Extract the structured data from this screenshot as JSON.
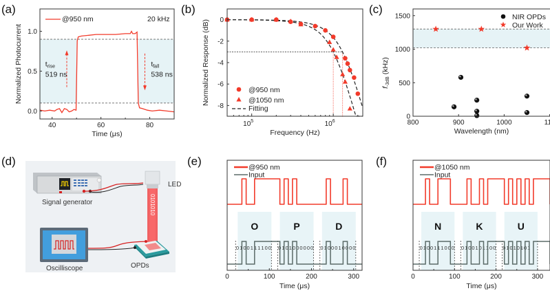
{
  "panels": {
    "a": "(a)",
    "b": "(b)",
    "c": "(c)",
    "d": "(d)",
    "e": "(e)",
    "f": "(f)"
  },
  "colors": {
    "red": "#f23a2a",
    "gray": "#5b6b68",
    "shade": "#e6f3f6",
    "black": "#222222"
  },
  "chart_data": [
    {
      "id": "a",
      "type": "line",
      "title": "",
      "xlabel": "Time (μs)",
      "ylabel": "Normalized Photocurrent",
      "xlim": [
        35,
        90
      ],
      "ylim": [
        -0.1,
        1.28
      ],
      "xticks": [
        40,
        60,
        80
      ],
      "xtick_labels": [
        "40",
        "60",
        "80"
      ],
      "yticks": [
        0.0,
        0.5,
        1.0
      ],
      "ytick_labels": [
        "0.0",
        "0.5",
        "1.0"
      ],
      "legend": [
        {
          "name": "@950 nm",
          "color": "#f23a2a"
        }
      ],
      "annotation_freq": "20 kHz",
      "thresholds": [
        0.1,
        0.9
      ],
      "rise": {
        "label": "t",
        "sub": "rise",
        "value": "519 ns"
      },
      "fall": {
        "label": "t",
        "sub": "fall",
        "value": "538 ns"
      },
      "series": [
        {
          "name": "@950 nm",
          "x": [
            35,
            37,
            39,
            41,
            42,
            43,
            44,
            45,
            46,
            47,
            48,
            49,
            49.8,
            50.3,
            50.7,
            52,
            55,
            58,
            62,
            66,
            70,
            72,
            72.5,
            73,
            74,
            74.8,
            75.3,
            75.8,
            77,
            79,
            81,
            84,
            87,
            90
          ],
          "y": [
            0.01,
            0.0,
            0.01,
            0.0,
            0.02,
            0.03,
            -0.02,
            0.03,
            0.02,
            -0.01,
            0.0,
            0.02,
            0.01,
            0.88,
            0.93,
            0.94,
            0.95,
            0.96,
            0.96,
            0.96,
            0.97,
            0.97,
            1.0,
            0.97,
            0.97,
            0.99,
            0.1,
            0.04,
            0.03,
            0.01,
            0.0,
            0.01,
            0.0,
            -0.01
          ]
        }
      ]
    },
    {
      "id": "b",
      "type": "scatter",
      "title": "",
      "xlabel": "Frequency (Hz)",
      "ylabel": "Normalized Response (dB)",
      "xscale": "log",
      "xlim": [
        50000,
        2300000
      ],
      "ylim": [
        -9,
        1
      ],
      "xticks": [
        100000,
        1000000
      ],
      "xtick_labels": [
        "10",
        "10"
      ],
      "xtick_exponents": [
        "5",
        "6"
      ],
      "yticks": [
        0,
        -2,
        -4,
        -6,
        -8
      ],
      "ytick_labels": [
        "0",
        "-2",
        "-4",
        "-6",
        "-8"
      ],
      "reference_level": -3,
      "cutoffs": [
        1000000,
        1300000
      ],
      "legend": [
        {
          "name": "@950 nm",
          "marker": "circle"
        },
        {
          "name": "@1050 nm",
          "marker": "triangle"
        },
        {
          "name": "Fitting",
          "marker": "dash"
        }
      ],
      "series": [
        {
          "name": "@950 nm",
          "x": [
            50000,
            100000,
            200000,
            300000,
            400000,
            600000,
            800000,
            1000000,
            1400000,
            1500000,
            1600000,
            1800000,
            2000000
          ],
          "y": [
            0,
            0,
            0,
            -0.2,
            -0.4,
            -0.6,
            -1.0,
            -1.6,
            -3.6,
            -4.1,
            -4.7,
            -5.4,
            -6.9
          ]
        },
        {
          "name": "@1050 nm",
          "x": [
            50000,
            100000,
            200000,
            300000,
            400000,
            900000,
            1000000,
            1100000,
            1300000,
            1400000,
            1600000
          ],
          "y": [
            0,
            0,
            0,
            -0.15,
            -0.45,
            -2.1,
            -2.8,
            -3.5,
            -5.1,
            -5.8,
            -8.3
          ]
        },
        {
          "name": "Fitting @950 nm",
          "fc": 1300000
        },
        {
          "name": "Fitting @1050 nm",
          "fc": 1000000
        }
      ]
    },
    {
      "id": "c",
      "type": "scatter",
      "title": "",
      "xlabel": "Wavelength (nm)",
      "ylabel": "f-3dB (kHz)",
      "ylabel_main": "f",
      "ylabel_sub": "-3dB",
      "ylabel_unit": " (kHz)",
      "xlim": [
        800,
        1100
      ],
      "ylim": [
        0,
        1600
      ],
      "xticks": [
        800,
        900,
        1000,
        1100
      ],
      "xtick_labels": [
        "800",
        "900",
        "1000",
        "110"
      ],
      "yticks": [
        0,
        500,
        1000,
        1500
      ],
      "ytick_labels": [
        "0",
        "500",
        "1000",
        "1500"
      ],
      "band": [
        1020,
        1300
      ],
      "legend": [
        {
          "name": "NIR OPDs",
          "marker": "sphere"
        },
        {
          "name": "Our Work",
          "marker": "star"
        }
      ],
      "series": [
        {
          "name": "NIR OPDs",
          "x": [
            890,
            905,
            940,
            940,
            940,
            1050,
            1050
          ],
          "y": [
            140,
            580,
            240,
            75,
            10,
            300,
            55
          ]
        },
        {
          "name": "Our Work",
          "x": [
            850,
            950,
            1050
          ],
          "y": [
            1300,
            1300,
            1020
          ]
        }
      ]
    },
    {
      "id": "e",
      "type": "line",
      "title": "",
      "xlabel": "Time (μs)",
      "ylabel": "",
      "xlim": [
        0,
        320
      ],
      "xticks": [
        0,
        100,
        200,
        300
      ],
      "xtick_labels": [
        "0",
        "100",
        "200",
        "300"
      ],
      "legend": [
        {
          "name": "@950 nm",
          "color": "#f23a2a"
        },
        {
          "name": "Input",
          "color": "#5b6b68"
        }
      ],
      "bit_period": 10,
      "start": 20,
      "letters": [
        {
          "char": "O",
          "bits": "01001111",
          "start": 20
        },
        {
          "char": "P",
          "bits": "01010000",
          "start": 120
        },
        {
          "char": "D",
          "bits": "01000100",
          "start": 220
        }
      ],
      "bit_strings": [
        "0100111100",
        "0101000000",
        "0100010000"
      ],
      "series": [
        {
          "name": "@950 nm",
          "bits": "010011110001010000000100010000"
        },
        {
          "name": "Input",
          "bits": "010011110001010000000100010000"
        }
      ]
    },
    {
      "id": "f",
      "type": "line",
      "title": "",
      "xlabel": "Time (μs)",
      "ylabel": "",
      "xlim": [
        0,
        330
      ],
      "xticks": [
        0,
        100,
        200,
        300
      ],
      "xtick_labels": [
        "0",
        "100",
        "200",
        "300"
      ],
      "legend": [
        {
          "name": "@1050 nm",
          "color": "#f23a2a"
        },
        {
          "name": "Input",
          "color": "#5b6b68"
        }
      ],
      "bit_period": 10,
      "letters": [
        {
          "char": "N",
          "bits": "01001110",
          "start": 15
        },
        {
          "char": "K",
          "bits": "01001011",
          "start": 115
        },
        {
          "char": "U",
          "bits": "01010101",
          "start": 215
        }
      ],
      "bit_strings": [
        "0100111000",
        "0100101100",
        "01010101"
      ],
      "series": [
        {
          "name": "@1050 nm",
          "bits": "0100111000010010110001010101"
        },
        {
          "name": "Input",
          "bits": "0100111000010010110001010101"
        }
      ]
    }
  ],
  "diagram": {
    "signal_generator": "Signal generator",
    "led": "LED",
    "beam_bits": "0101010",
    "oscilloscope": "Oscilliscope",
    "opds": "OPDs"
  }
}
